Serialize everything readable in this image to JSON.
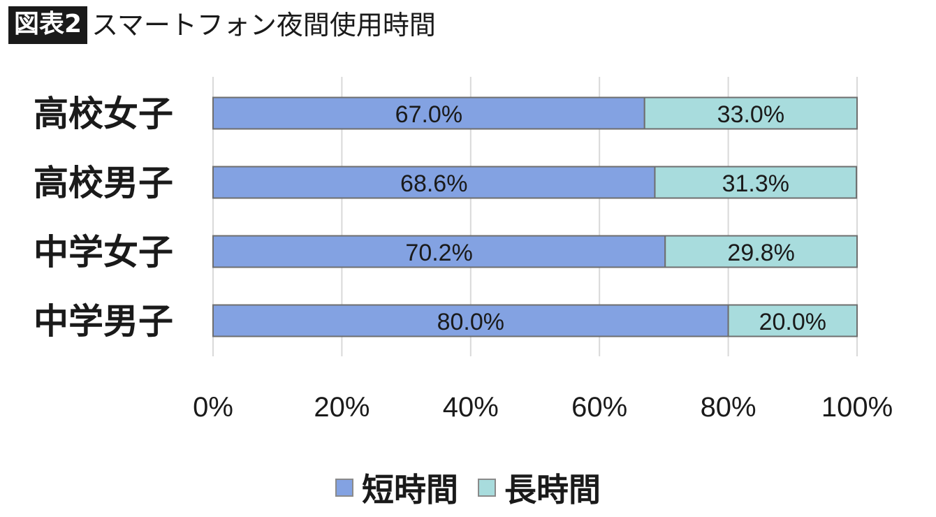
{
  "figure": {
    "badge": "図表2",
    "title": "スマートフォン夜間使用時間"
  },
  "colors": {
    "short": "#83a2e2",
    "long": "#a8dcdd",
    "border": "#6e6e6e",
    "grid": "#d9d9d9"
  },
  "chart_data": {
    "type": "bar",
    "orientation": "horizontal",
    "stacked": true,
    "title": "スマートフォン夜間使用時間",
    "categories": [
      "高校女子",
      "高校男子",
      "中学女子",
      "中学男子"
    ],
    "series": [
      {
        "name": "短時間",
        "values": [
          67.0,
          68.6,
          70.2,
          80.0
        ],
        "labels": [
          "67.0%",
          "68.6%",
          "70.2%",
          "80.0%"
        ]
      },
      {
        "name": "長時間",
        "values": [
          33.0,
          31.3,
          29.8,
          20.0
        ],
        "labels": [
          "33.0%",
          "31.3%",
          "29.8%",
          "20.0%"
        ]
      }
    ],
    "xlim": [
      0,
      100
    ],
    "xticks": [
      0,
      20,
      40,
      60,
      80,
      100
    ],
    "xtick_labels": [
      "0%",
      "20%",
      "40%",
      "60%",
      "80%",
      "100%"
    ],
    "grid": true,
    "legend_position": "bottom"
  }
}
